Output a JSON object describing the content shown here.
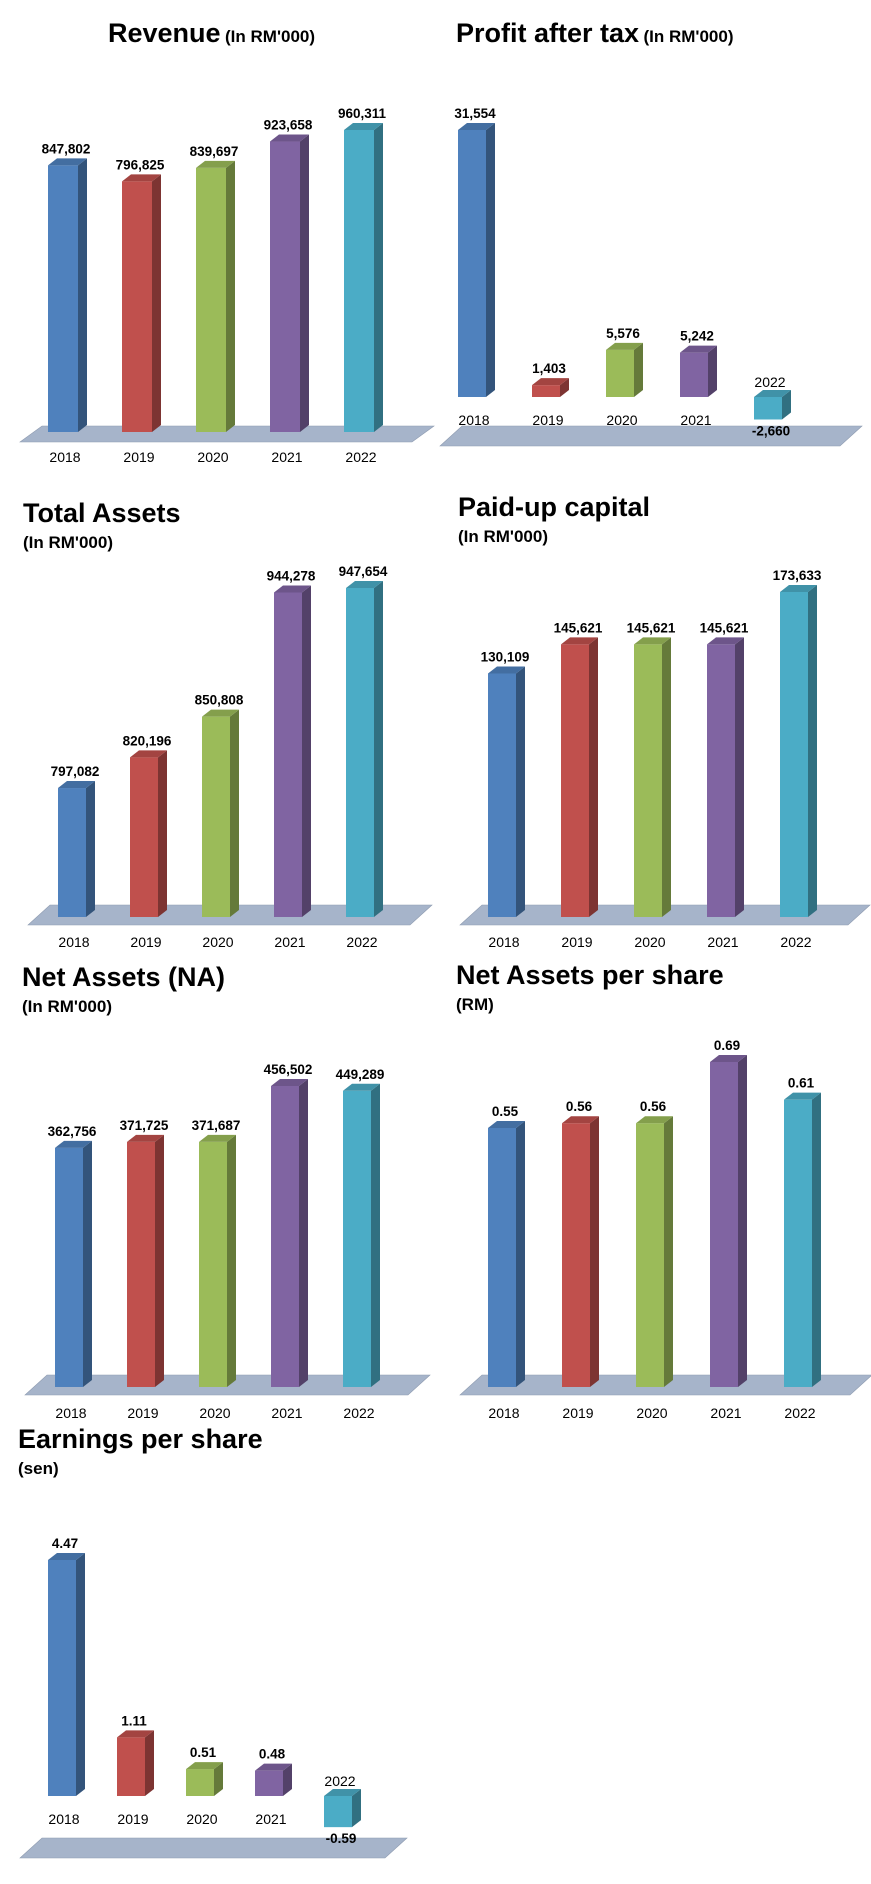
{
  "colors": {
    "series": [
      "#4F81BD",
      "#C0504D",
      "#9BBB59",
      "#8064A2",
      "#4BACC6"
    ],
    "floor": "#A6B4CA"
  },
  "chart_data": [
    {
      "id": "revenue",
      "type": "bar",
      "title": "Revenue",
      "unit": "(In RM'000)",
      "subtitle": "",
      "categories": [
        "2018",
        "2019",
        "2020",
        "2021",
        "2022"
      ],
      "values": [
        847802,
        796825,
        839697,
        923658,
        960311
      ],
      "value_labels": [
        "847,802",
        "796,825",
        "839,697",
        "923,658",
        "960,311"
      ],
      "ylim": [
        0,
        960311
      ]
    },
    {
      "id": "pat",
      "type": "bar",
      "title": "Profit after tax",
      "unit": "(In RM'000)",
      "subtitle": "",
      "categories": [
        "2018",
        "2019",
        "2020",
        "2021",
        "2022"
      ],
      "values": [
        31554,
        1403,
        5576,
        5242,
        -2660
      ],
      "value_labels": [
        "31,554",
        "1,403",
        "5,576",
        "5,242",
        "-2,660"
      ],
      "ylim": [
        -2660,
        31554
      ]
    },
    {
      "id": "total_assets",
      "type": "bar",
      "title": "Total Assets",
      "unit": "",
      "subtitle": "(In RM'000)",
      "categories": [
        "2018",
        "2019",
        "2020",
        "2021",
        "2022"
      ],
      "values": [
        797082,
        820196,
        850808,
        944278,
        947654
      ],
      "value_labels": [
        "797,082",
        "820,196",
        "850,808",
        "944,278",
        "947,654"
      ],
      "ylim": [
        700000,
        947654
      ]
    },
    {
      "id": "paid_up",
      "type": "bar",
      "title": "Paid-up capital",
      "unit": "",
      "subtitle": "(In RM'000)",
      "categories": [
        "2018",
        "2019",
        "2020",
        "2021",
        "2022"
      ],
      "values": [
        130109,
        145621,
        145621,
        145621,
        173633
      ],
      "value_labels": [
        "130,109",
        "145,621",
        "145,621",
        "145,621",
        "173,633"
      ],
      "ylim": [
        0,
        173633
      ]
    },
    {
      "id": "net_assets",
      "type": "bar",
      "title": "Net Assets (NA)",
      "unit": "",
      "subtitle": "(In RM'000)",
      "categories": [
        "2018",
        "2019",
        "2020",
        "2021",
        "2022"
      ],
      "values": [
        362756,
        371725,
        371687,
        456502,
        449289
      ],
      "value_labels": [
        "362,756",
        "371,725",
        "371,687",
        "456,502",
        "449,289"
      ],
      "ylim": [
        0,
        456502
      ]
    },
    {
      "id": "na_per_share",
      "type": "bar",
      "title": "Net Assets per share",
      "unit": "",
      "subtitle": "(RM)",
      "categories": [
        "2018",
        "2019",
        "2020",
        "2021",
        "2022"
      ],
      "values": [
        0.55,
        0.56,
        0.56,
        0.69,
        0.61
      ],
      "value_labels": [
        "0.55",
        "0.56",
        "0.56",
        "0.69",
        "0.61"
      ],
      "ylim": [
        0,
        0.69
      ]
    },
    {
      "id": "eps",
      "type": "bar",
      "title": "Earnings per share",
      "unit": "",
      "subtitle": "(sen)",
      "categories": [
        "2018",
        "2019",
        "2020",
        "2021",
        "2022"
      ],
      "values": [
        4.47,
        1.11,
        0.51,
        0.48,
        -0.59
      ],
      "value_labels": [
        "4.47",
        "1.11",
        "0.51",
        "0.48",
        "-0.59"
      ],
      "ylim": [
        -0.59,
        4.47
      ]
    }
  ]
}
